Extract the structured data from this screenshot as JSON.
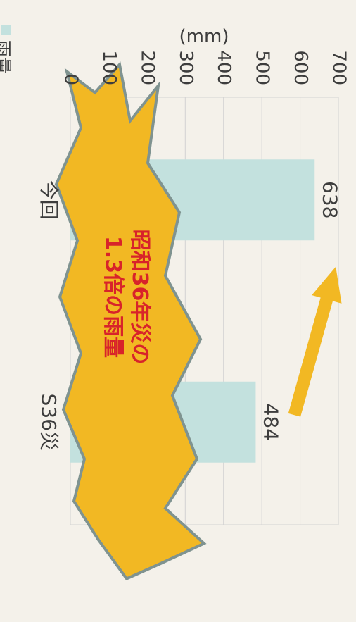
{
  "chart_data": {
    "type": "bar",
    "orientation": "rotated 90° clockwise (value axis runs vertically along the page)",
    "categories": [
      "S36災",
      "今回"
    ],
    "series": [
      {
        "name": "雨量",
        "values": [
          484,
          638
        ]
      }
    ],
    "data_labels": [
      "484",
      "638"
    ],
    "y_unit": "(mm)",
    "ylim": [
      0,
      700
    ],
    "yticks": [
      "0",
      "100",
      "200",
      "300",
      "400",
      "500",
      "600",
      "700"
    ],
    "grid": true,
    "legend": {
      "placement": "bottom",
      "label": "雨量"
    },
    "annotation": {
      "line1": "昭和36年災の",
      "line2": "1.3倍の雨量"
    },
    "colors": {
      "bar": "#c3e1de",
      "burst": "#f2b823",
      "burst_stroke": "#7f9390",
      "arrow": "#f2b823",
      "annotation_text": "#d8232a",
      "grid": "#d2d2d2",
      "axis_text": "#3d3d3d",
      "background": "#f4f1ea"
    }
  }
}
